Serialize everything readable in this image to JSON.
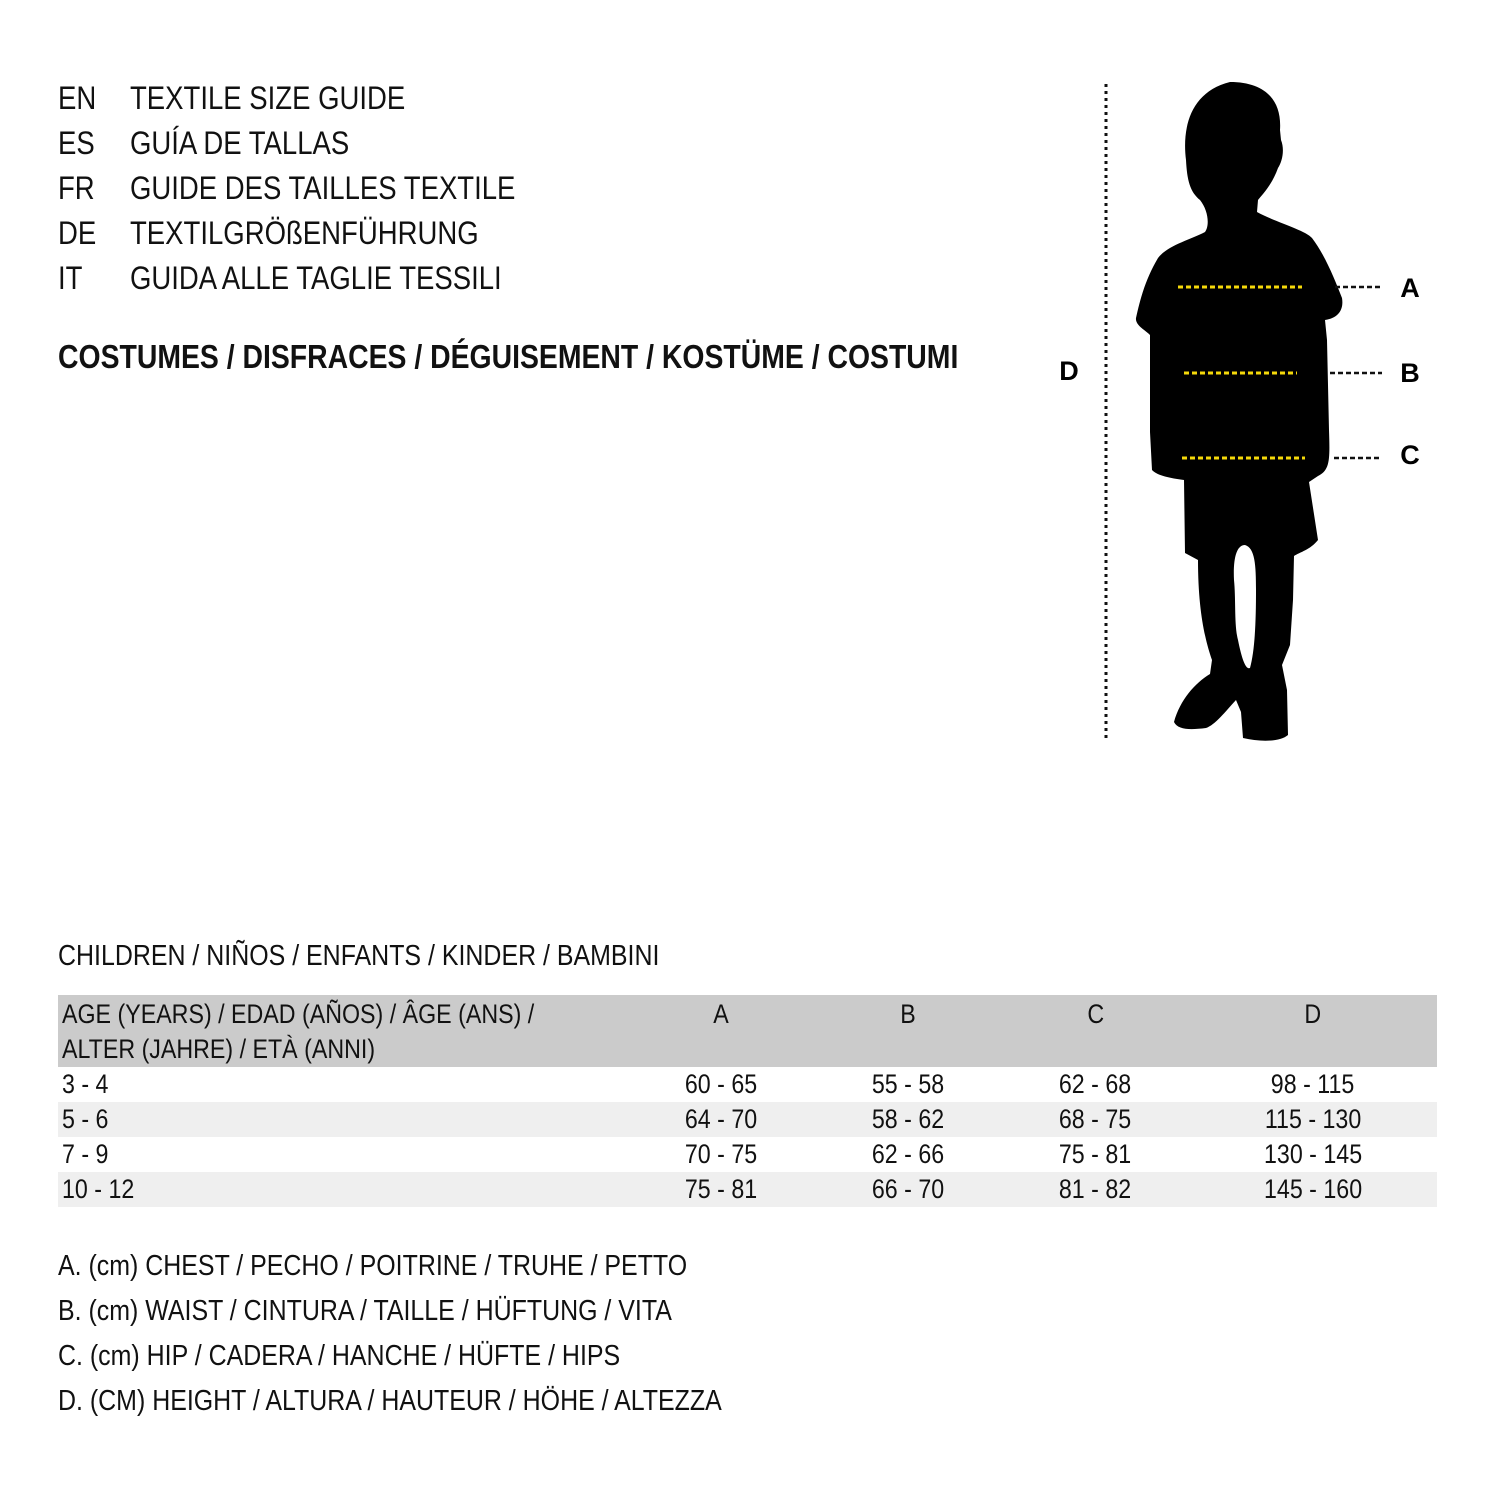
{
  "titles": [
    {
      "code": "EN",
      "text": "TEXTILE SIZE GUIDE"
    },
    {
      "code": "ES",
      "text": "GUÍA DE TALLAS"
    },
    {
      "code": "FR",
      "text": "GUIDE DES TAILLES TEXTILE"
    },
    {
      "code": "DE",
      "text": "TEXTILGRÖßENFÜHRUNG"
    },
    {
      "code": "IT",
      "text": "GUIDA ALLE TAGLIE TESSILI"
    }
  ],
  "subtitle": "COSTUMES / DISFRACES / DÉGUISEMENT / KOSTÜME / COSTUMI",
  "figure": {
    "labels": {
      "a": "A",
      "b": "B",
      "c": "C",
      "d": "D"
    },
    "measure_line_color": "#f5d90a",
    "silhouette_color": "#000000"
  },
  "section_title": "CHILDREN / NIÑOS / ENFANTS / KINDER / BAMBINI",
  "table": {
    "header": {
      "age_line1": "AGE (YEARS) / EDAD (AÑOS) / ÂGE (ANS) /",
      "age_line2": "ALTER (JAHRE) / ETÀ (ANNI)",
      "cols": [
        "A",
        "B",
        "C",
        "D"
      ]
    },
    "rows": [
      [
        "3 - 4",
        "60 - 65",
        "55 - 58",
        "62 - 68",
        "98 - 115"
      ],
      [
        "5 - 6",
        "64 - 70",
        "58 - 62",
        "68 - 75",
        "115 - 130"
      ],
      [
        "7 - 9",
        "70 - 75",
        "62 - 66",
        "75 - 81",
        "130 - 145"
      ],
      [
        "10 - 12",
        "75 - 81",
        "66 - 70",
        "81 - 82",
        "145 - 160"
      ]
    ],
    "header_bg": "#cbcbcb",
    "alt_row_bg": "#efefef"
  },
  "legend": [
    "A. (cm) CHEST / PECHO / POITRINE / TRUHE / PETTO",
    "B. (cm) WAIST / CINTURA / TAILLE / HÜFTUNG / VITA",
    "C. (cm) HIP / CADERA / HANCHE / HÜFTE / HIPS",
    "D. (CM) HEIGHT / ALTURA / HAUTEUR / HÖHE / ALTEZZA"
  ]
}
